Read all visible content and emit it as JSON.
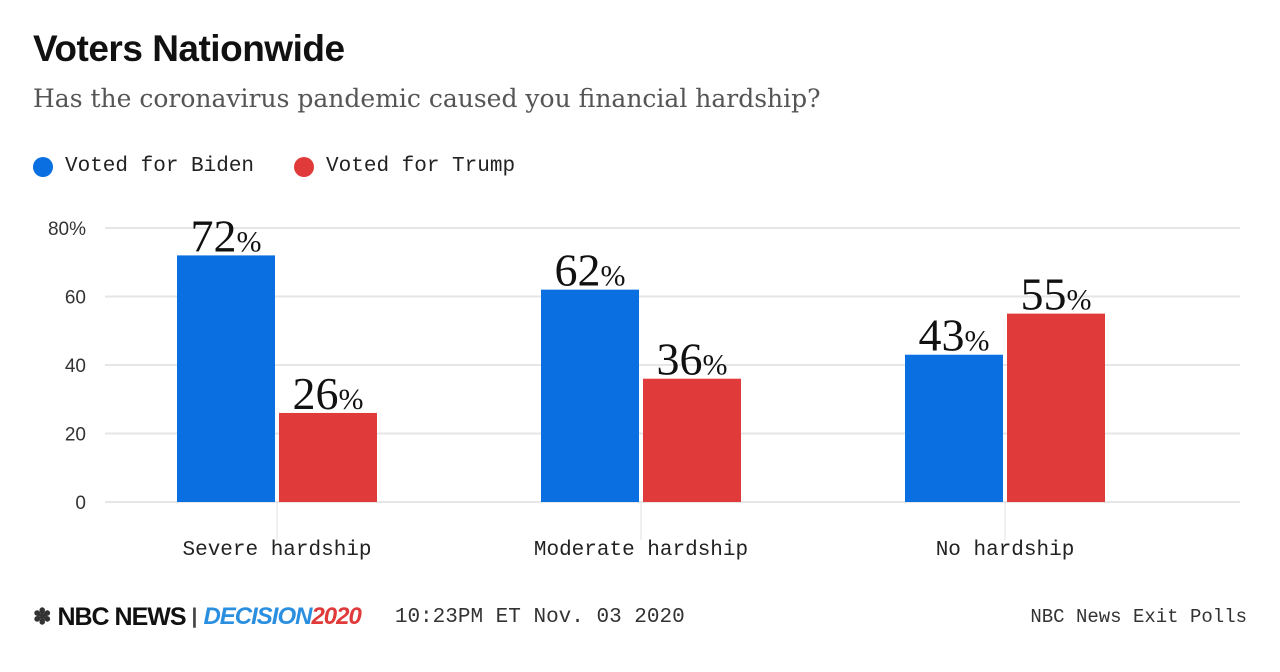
{
  "header": {
    "title": "Voters Nationwide",
    "subtitle": "Has the coronavirus pandemic caused you financial hardship?"
  },
  "footer": {
    "logo": "NBC NEWS | DECISION 2020",
    "logo_nbc": "NBC NEWS",
    "logo_decision": "DECISION",
    "logo_year": "2020",
    "timestamp": "10:23PM ET Nov. 03 2020",
    "source": "NBC News Exit Polls"
  },
  "chart_data": {
    "type": "bar",
    "title": "",
    "categories": [
      "Severe hardship",
      "Moderate hardship",
      "No hardship"
    ],
    "series": [
      {
        "name": "Voted for Biden",
        "color": "#0a6fe0",
        "values": [
          72,
          62,
          43
        ]
      },
      {
        "name": "Voted for Trump",
        "color": "#e03a3a",
        "values": [
          26,
          36,
          55
        ]
      }
    ],
    "ylim": [
      0,
      80
    ],
    "yticks": [
      0,
      20,
      40,
      60,
      80
    ],
    "ytick_labels": [
      "0",
      "20",
      "40",
      "60",
      "80%"
    ],
    "data_label_suffix": "%",
    "grid": true,
    "legend": "top-left",
    "xlabel": "",
    "ylabel": ""
  }
}
